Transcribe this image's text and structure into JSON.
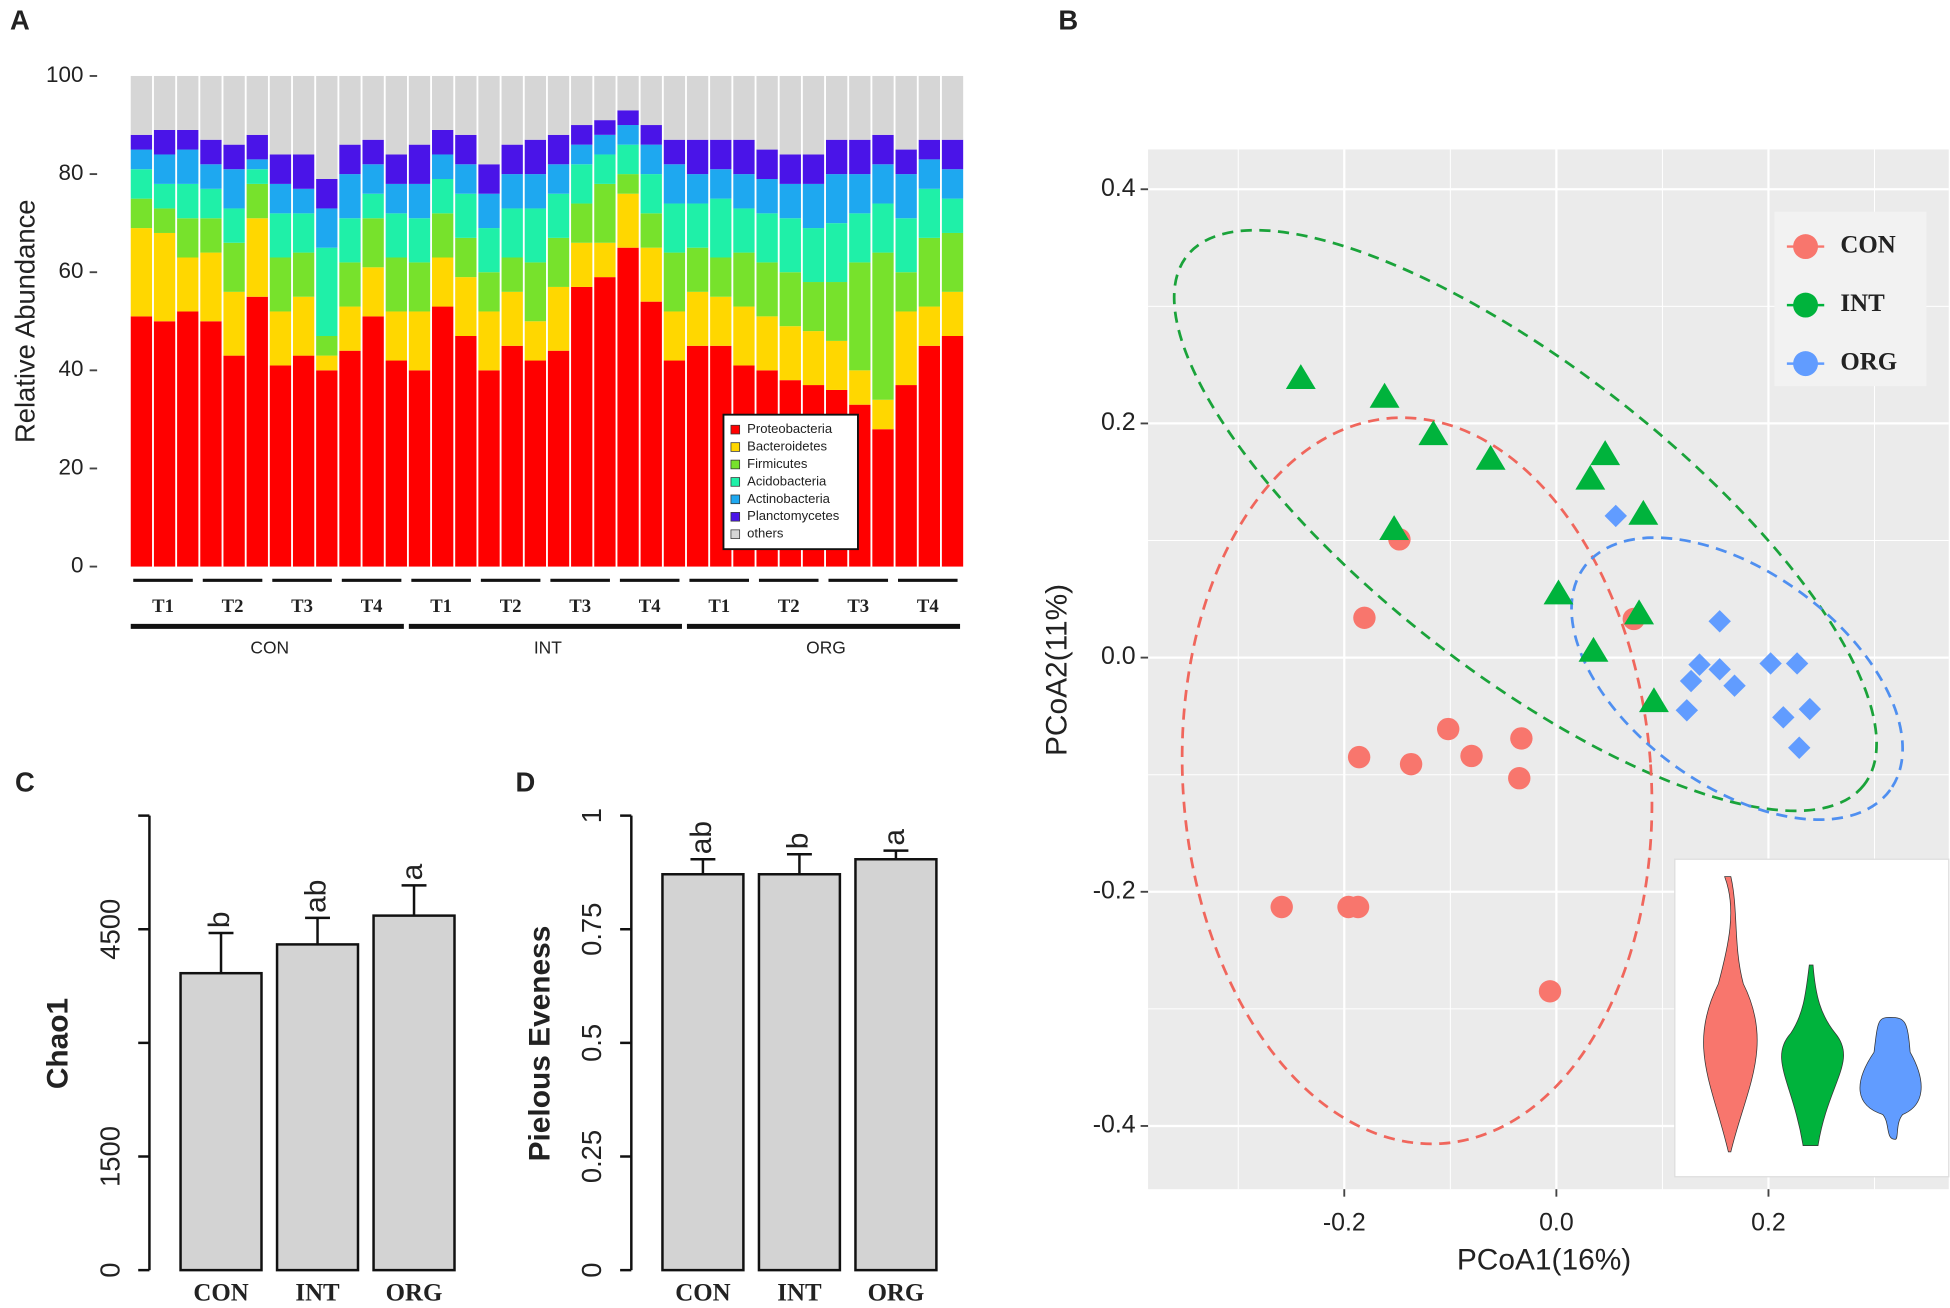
{
  "chart_data": [
    {
      "type": "stacked_bar",
      "panel_label": "A",
      "y_label": "Relative Abundance",
      "ylim": [
        0,
        100
      ],
      "yticks": [
        0,
        20,
        40,
        60,
        80,
        100
      ],
      "legend": "lower right",
      "categories": [
        null,
        null,
        null,
        null,
        null,
        null,
        null,
        null,
        null,
        null,
        null,
        null,
        null,
        null,
        null,
        null,
        null,
        null,
        null,
        null,
        null,
        null,
        null,
        null,
        null,
        null,
        null,
        null,
        null,
        null,
        null,
        null,
        null,
        null,
        null,
        null
      ],
      "groups": [
        {
          "name": "CON",
          "subgroups": [
            "T1",
            "T2",
            "T3",
            "T4"
          ]
        },
        {
          "name": "INT",
          "subgroups": [
            "T1",
            "T2",
            "T3",
            "T4"
          ]
        },
        {
          "name": "ORG",
          "subgroups": [
            "T1",
            "T2",
            "T3",
            "T4"
          ]
        }
      ],
      "series": [
        {
          "name": "Proteobacteria",
          "color": "#ff0000",
          "values": [
            51,
            50,
            52,
            50,
            43,
            55,
            41,
            43,
            40,
            44,
            51,
            42,
            40,
            53,
            47,
            40,
            45,
            42,
            44,
            57,
            59,
            65,
            54,
            42,
            45,
            45,
            41,
            40,
            38,
            37,
            36,
            33,
            28,
            37,
            45,
            47
          ]
        },
        {
          "name": "Bacteroidetes",
          "color": "#ffd700",
          "values": [
            18,
            18,
            11,
            14,
            13,
            16,
            11,
            12,
            3,
            9,
            10,
            10,
            12,
            10,
            12,
            12,
            11,
            8,
            13,
            9,
            7,
            11,
            11,
            10,
            11,
            10,
            12,
            11,
            11,
            11,
            10,
            7,
            6,
            15,
            8,
            9
          ]
        },
        {
          "name": "Firmicutes",
          "color": "#77e22c",
          "values": [
            6,
            5,
            8,
            7,
            10,
            7,
            11,
            9,
            4,
            9,
            10,
            11,
            10,
            9,
            8,
            8,
            7,
            12,
            10,
            8,
            12,
            4,
            7,
            12,
            9,
            8,
            11,
            11,
            11,
            10,
            12,
            22,
            30,
            8,
            14,
            12
          ]
        },
        {
          "name": "Acidobacteria",
          "color": "#1ff0a8",
          "values": [
            6,
            5,
            7,
            6,
            7,
            3,
            9,
            8,
            18,
            9,
            5,
            9,
            9,
            7,
            9,
            9,
            10,
            11,
            9,
            8,
            6,
            6,
            8,
            10,
            9,
            12,
            9,
            10,
            11,
            11,
            12,
            10,
            10,
            11,
            10,
            7
          ]
        },
        {
          "name": "Actinobacteria",
          "color": "#1ea8f0",
          "values": [
            4,
            6,
            7,
            5,
            8,
            2,
            6,
            5,
            8,
            9,
            6,
            6,
            7,
            5,
            6,
            7,
            7,
            7,
            6,
            4,
            4,
            4,
            6,
            8,
            6,
            6,
            7,
            7,
            7,
            9,
            10,
            8,
            8,
            9,
            6,
            6
          ]
        },
        {
          "name": "Planctomycetes",
          "color": "#4a14e8",
          "values": [
            3,
            5,
            4,
            5,
            5,
            5,
            6,
            7,
            6,
            6,
            5,
            6,
            8,
            5,
            6,
            6,
            6,
            7,
            6,
            4,
            3,
            3,
            4,
            5,
            7,
            6,
            7,
            6,
            6,
            6,
            7,
            7,
            6,
            5,
            4,
            6
          ]
        },
        {
          "name": "others",
          "color": "#d6d6d6",
          "values": [
            12,
            11,
            11,
            13,
            14,
            12,
            16,
            16,
            21,
            14,
            13,
            16,
            14,
            11,
            12,
            18,
            14,
            13,
            12,
            10,
            9,
            7,
            10,
            13,
            13,
            13,
            13,
            15,
            16,
            16,
            13,
            13,
            12,
            15,
            13,
            13
          ]
        }
      ]
    },
    {
      "type": "scatter",
      "panel_label": "B",
      "x_label": "PCoA1(16%)",
      "y_label": "PCoA2(11%)",
      "xlim": [
        -0.385,
        0.37
      ],
      "ylim": [
        -0.454,
        0.434
      ],
      "xticks": [
        -0.2,
        {
          "value": 0,
          "label": "0.0"
        },
        0.2
      ],
      "yticks": [
        -0.4,
        -0.2,
        {
          "value": 0,
          "label": "0.0"
        },
        0.2,
        0.4
      ],
      "grid": true,
      "legend": "upper right",
      "series": [
        {
          "name": "CON",
          "color": "#f8766d",
          "marker": "circle",
          "x": [
            -0.148,
            -0.181,
            -0.186,
            -0.137,
            -0.102,
            -0.08,
            -0.033,
            -0.035,
            -0.259,
            -0.196,
            -0.187,
            -0.006,
            0.073
          ],
          "y": [
            0.101,
            0.034,
            -0.085,
            -0.091,
            -0.061,
            -0.084,
            -0.069,
            -0.103,
            -0.213,
            -0.213,
            -0.213,
            -0.285,
            0.033
          ]
        },
        {
          "name": "INT",
          "color": "#00b33c",
          "marker": "triangle",
          "x": [
            -0.241,
            -0.162,
            -0.116,
            -0.062,
            -0.153,
            0.046,
            0.032,
            0.082,
            0.002,
            0.078,
            0.035,
            0.092
          ],
          "y": [
            0.239,
            0.223,
            0.191,
            0.17,
            0.11,
            0.174,
            0.153,
            0.123,
            0.055,
            0.038,
            0.006,
            -0.037
          ]
        },
        {
          "name": "ORG",
          "color": "#619cff",
          "marker": "diamond",
          "x": [
            0.056,
            0.154,
            0.135,
            0.154,
            0.127,
            0.168,
            0.202,
            0.227,
            0.123,
            0.214,
            0.239,
            0.229
          ],
          "y": [
            0.121,
            0.031,
            -0.006,
            -0.01,
            -0.02,
            -0.024,
            -0.005,
            -0.005,
            -0.045,
            -0.051,
            -0.044,
            -0.077
          ]
        }
      ]
    },
    {
      "type": "bar",
      "panel_label": "C",
      "y_label": "Chao1",
      "categories": [
        "CON",
        "INT",
        "ORG"
      ],
      "values": [
        3920,
        4300,
        4680
      ],
      "errors": [
        530,
        350,
        400
      ],
      "annotations": [
        "b",
        "ab",
        "a"
      ],
      "color": "#d3d3d3",
      "ylim": [
        0,
        6000
      ],
      "yticks": [
        0,
        1500,
        4500
      ],
      "minor_yticks": [
        3000,
        6000
      ]
    },
    {
      "type": "bar",
      "panel_label": "D",
      "y_label": "Pielous Eveness",
      "categories": [
        "CON",
        "INT",
        "ORG"
      ],
      "values": [
        0.871,
        0.871,
        0.904
      ],
      "errors": [
        0.033,
        0.044,
        0.019
      ],
      "annotations": [
        "ab",
        "b",
        "a"
      ],
      "color": "#d3d3d3",
      "ylim": [
        0,
        1
      ],
      "yticks": [
        0,
        0.25,
        0.5,
        0.75,
        1
      ],
      "minor_yticks": []
    }
  ]
}
